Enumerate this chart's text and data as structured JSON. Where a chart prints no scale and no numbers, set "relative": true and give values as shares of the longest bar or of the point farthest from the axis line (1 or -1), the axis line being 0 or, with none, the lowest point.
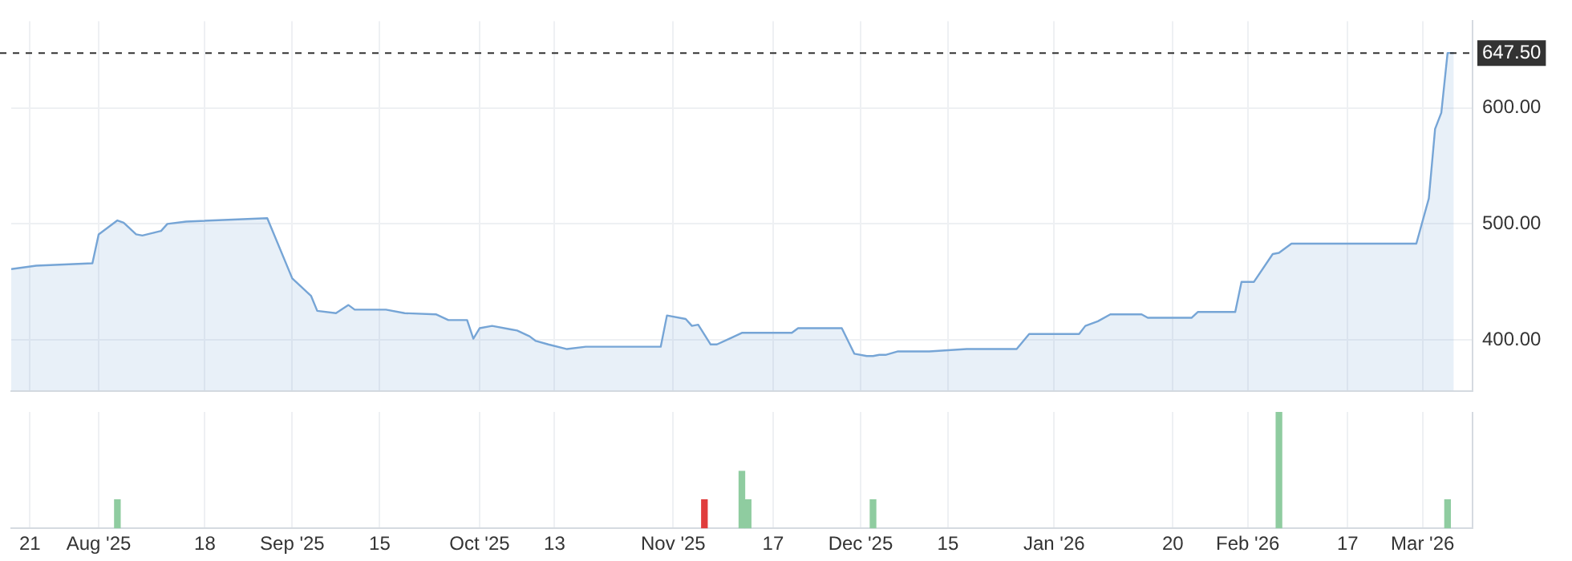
{
  "chart_data": [
    {
      "type": "area",
      "color": "#76a5d6",
      "x": [
        "2025-07-18",
        "2025-07-22",
        "2025-07-31",
        "2025-08-01",
        "2025-08-04",
        "2025-08-05",
        "2025-08-07",
        "2025-08-08",
        "2025-08-11",
        "2025-08-12",
        "2025-08-15",
        "2025-08-28",
        "2025-09-01",
        "2025-09-04",
        "2025-09-05",
        "2025-09-08",
        "2025-09-10",
        "2025-09-11",
        "2025-09-16",
        "2025-09-19",
        "2025-09-24",
        "2025-09-26",
        "2025-09-29",
        "2025-09-30",
        "2025-10-01",
        "2025-10-03",
        "2025-10-06",
        "2025-10-07",
        "2025-10-09",
        "2025-10-10",
        "2025-10-12",
        "2025-10-15",
        "2025-10-18",
        "2025-10-30",
        "2025-10-31",
        "2025-11-03",
        "2025-11-04",
        "2025-11-05",
        "2025-11-07",
        "2025-11-08",
        "2025-11-10",
        "2025-11-12",
        "2025-11-20",
        "2025-11-21",
        "2025-11-28",
        "2025-11-30",
        "2025-12-02",
        "2025-12-03",
        "2025-12-04",
        "2025-12-05",
        "2025-12-07",
        "2025-12-12",
        "2025-12-15",
        "2025-12-18",
        "2025-12-26",
        "2025-12-28",
        "2026-01-05",
        "2026-01-06",
        "2026-01-08",
        "2026-01-10",
        "2026-01-15",
        "2026-01-16",
        "2026-01-23",
        "2026-01-24",
        "2026-01-30",
        "2026-01-31",
        "2026-02-02",
        "2026-02-05",
        "2026-02-06",
        "2026-02-08",
        "2026-02-28",
        "2026-03-02",
        "2026-03-03",
        "2026-03-04",
        "2026-03-05",
        "2026-03-06"
      ],
      "values": [
        461,
        464,
        466,
        491,
        503,
        501,
        491,
        490,
        494,
        500,
        502,
        505,
        453,
        438,
        425,
        423,
        430,
        426,
        426,
        423,
        422,
        417,
        417,
        401,
        410,
        412,
        409,
        408,
        403,
        399,
        396,
        392,
        394,
        394,
        421,
        418,
        412,
        413,
        396,
        396,
        401,
        406,
        406,
        410,
        410,
        388,
        386,
        386,
        387,
        387,
        390,
        390,
        391,
        392,
        392,
        405,
        405,
        412,
        416,
        422,
        422,
        419,
        419,
        424,
        424,
        450,
        450,
        474,
        475,
        483,
        483,
        522,
        582,
        596,
        647.5,
        647.5
      ],
      "xlim": [
        "2025-07-18",
        "2026-03-09"
      ],
      "xticks": [
        {
          "value": "2025-07-21",
          "label": null
        },
        {
          "value": "2025-08-01",
          "label": null
        },
        {
          "value": "2025-08-18",
          "label": null
        },
        {
          "value": "2025-09-01",
          "label": null
        },
        {
          "value": "2025-09-15",
          "label": null
        },
        {
          "value": "2025-10-01",
          "label": null
        },
        {
          "value": "2025-10-13",
          "label": null
        },
        {
          "value": "2025-11-01",
          "label": null
        },
        {
          "value": "2025-11-17",
          "label": null
        },
        {
          "value": "2025-12-01",
          "label": null
        },
        {
          "value": "2025-12-15",
          "label": null
        },
        {
          "value": "2026-01-01",
          "label": null
        },
        {
          "value": "2026-01-20",
          "label": null
        },
        {
          "value": "2026-02-01",
          "label": null
        },
        {
          "value": "2026-02-17",
          "label": null
        },
        {
          "value": "2026-03-01",
          "label": null
        }
      ],
      "ylim": [
        356,
        675
      ],
      "yticks": [
        {
          "value": 400,
          "label": "400.00"
        },
        {
          "value": 500,
          "label": "500.00"
        },
        {
          "value": 600,
          "label": "600.00"
        }
      ],
      "ref_lines": [
        {
          "axis": "y",
          "value": 647.5,
          "label": "647.50",
          "color": "#333333",
          "line_style": "dashed"
        }
      ],
      "grid": true,
      "tick_labels": "y"
    },
    {
      "type": "bar",
      "relative": true,
      "x": [
        "2025-08-04",
        "2025-11-06",
        "2025-11-12",
        "2025-11-13",
        "2025-12-03",
        "2026-02-06",
        "2026-03-05"
      ],
      "values": [
        0.245,
        0.245,
        0.49,
        0.245,
        0.245,
        1,
        0.245
      ],
      "colors": [
        "#8fcca0",
        "#e03c3c",
        "#8fcca0",
        "#8fcca0",
        "#8fcca0",
        "#8fcca0",
        "#8fcca0"
      ],
      "xlim": [
        "2025-07-18",
        "2026-03-09"
      ],
      "xticks": [
        {
          "value": "2025-07-21",
          "label": "21"
        },
        {
          "value": "2025-08-01",
          "label": "Aug '25"
        },
        {
          "value": "2025-08-18",
          "label": "18"
        },
        {
          "value": "2025-09-01",
          "label": "Sep '25"
        },
        {
          "value": "2025-09-15",
          "label": "15"
        },
        {
          "value": "2025-10-01",
          "label": "Oct '25"
        },
        {
          "value": "2025-10-13",
          "label": "13"
        },
        {
          "value": "2025-11-01",
          "label": "Nov '25"
        },
        {
          "value": "2025-11-17",
          "label": "17"
        },
        {
          "value": "2025-12-01",
          "label": "Dec '25"
        },
        {
          "value": "2025-12-15",
          "label": "15"
        },
        {
          "value": "2026-01-01",
          "label": "Jan '26"
        },
        {
          "value": "2026-01-20",
          "label": "20"
        },
        {
          "value": "2026-02-01",
          "label": "Feb '26"
        },
        {
          "value": "2026-02-17",
          "label": "17"
        },
        {
          "value": "2026-03-01",
          "label": "Mar '26"
        }
      ],
      "grid": "x",
      "tick_labels": "x"
    }
  ]
}
